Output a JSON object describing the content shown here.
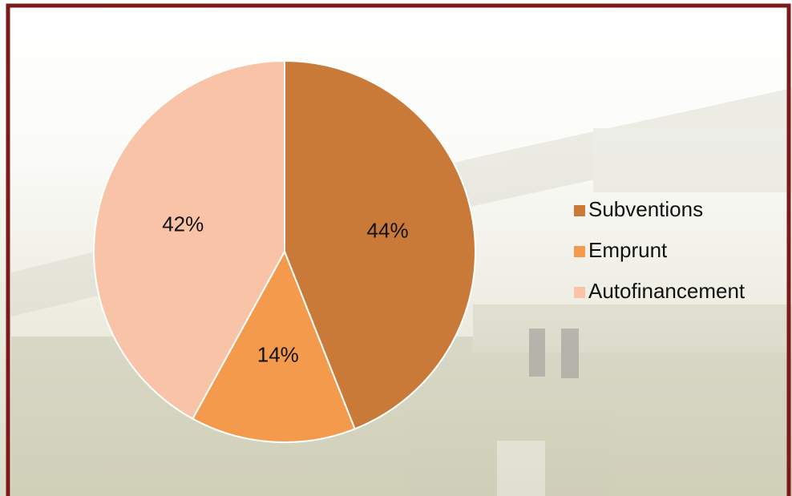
{
  "chart_data": {
    "type": "pie",
    "categories": [
      "Subventions",
      "Emprunt",
      "Autofinancement"
    ],
    "values": [
      44,
      14,
      42
    ],
    "value_labels": [
      "44%",
      "14%",
      "42%"
    ],
    "colors": [
      "#c97938",
      "#f49a4c",
      "#f9c3a7"
    ],
    "legend": "right"
  }
}
